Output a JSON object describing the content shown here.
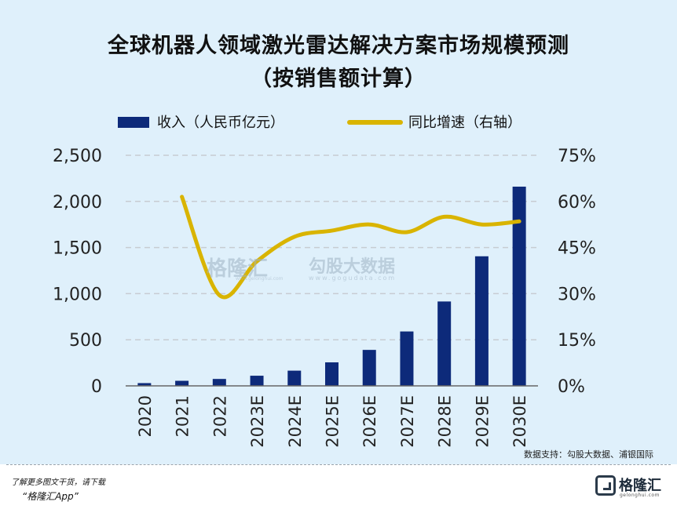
{
  "chart_data": {
    "type": "bar",
    "title": "全球机器人领域激光雷达解决方案市场规模预测",
    "subtitle": "（按销售额计算）",
    "categories": [
      "2020",
      "2021",
      "2022",
      "2023E",
      "2024E",
      "2025E",
      "2026E",
      "2027E",
      "2028E",
      "2029E",
      "2030E"
    ],
    "series": [
      {
        "name": "收入（人民币亿元）",
        "type": "bar",
        "axis": "left",
        "color": "#0d2a7a",
        "values": [
          30,
          55,
          75,
          110,
          165,
          255,
          390,
          590,
          915,
          1405,
          2160
        ]
      },
      {
        "name": "同比增速（右轴）",
        "type": "line",
        "axis": "right",
        "color": "#d9b400",
        "values": [
          null,
          61.5,
          29.5,
          40.5,
          48.5,
          50.5,
          52.5,
          50.0,
          55.0,
          52.5,
          53.5
        ]
      }
    ],
    "y_left": {
      "min": 0,
      "max": 2500,
      "ticks": [
        0,
        500,
        1000,
        1500,
        2000,
        2500
      ],
      "tick_labels": [
        "0",
        "500",
        "1,000",
        "1,500",
        "2,000",
        "2,500"
      ]
    },
    "y_right": {
      "min": 0,
      "max": 75,
      "ticks": [
        0,
        15,
        30,
        45,
        60,
        75
      ],
      "tick_labels": [
        "0%",
        "15%",
        "30%",
        "45%",
        "60%",
        "75%"
      ]
    },
    "grid": true,
    "legend_position": "top"
  },
  "source": "数据支持：勾股大数据、浦银国际",
  "watermarks": {
    "left_brand": "格隆汇",
    "left_domain": "www.gelonghui.com",
    "right_brand": "勾股大数据",
    "right_domain": "www.gogudata.com"
  },
  "footer": {
    "line1": "了解更多图文干货，请下载",
    "line2": "“格隆汇App”",
    "logo_name": "格隆汇",
    "logo_domain": "gelonghui.com"
  }
}
